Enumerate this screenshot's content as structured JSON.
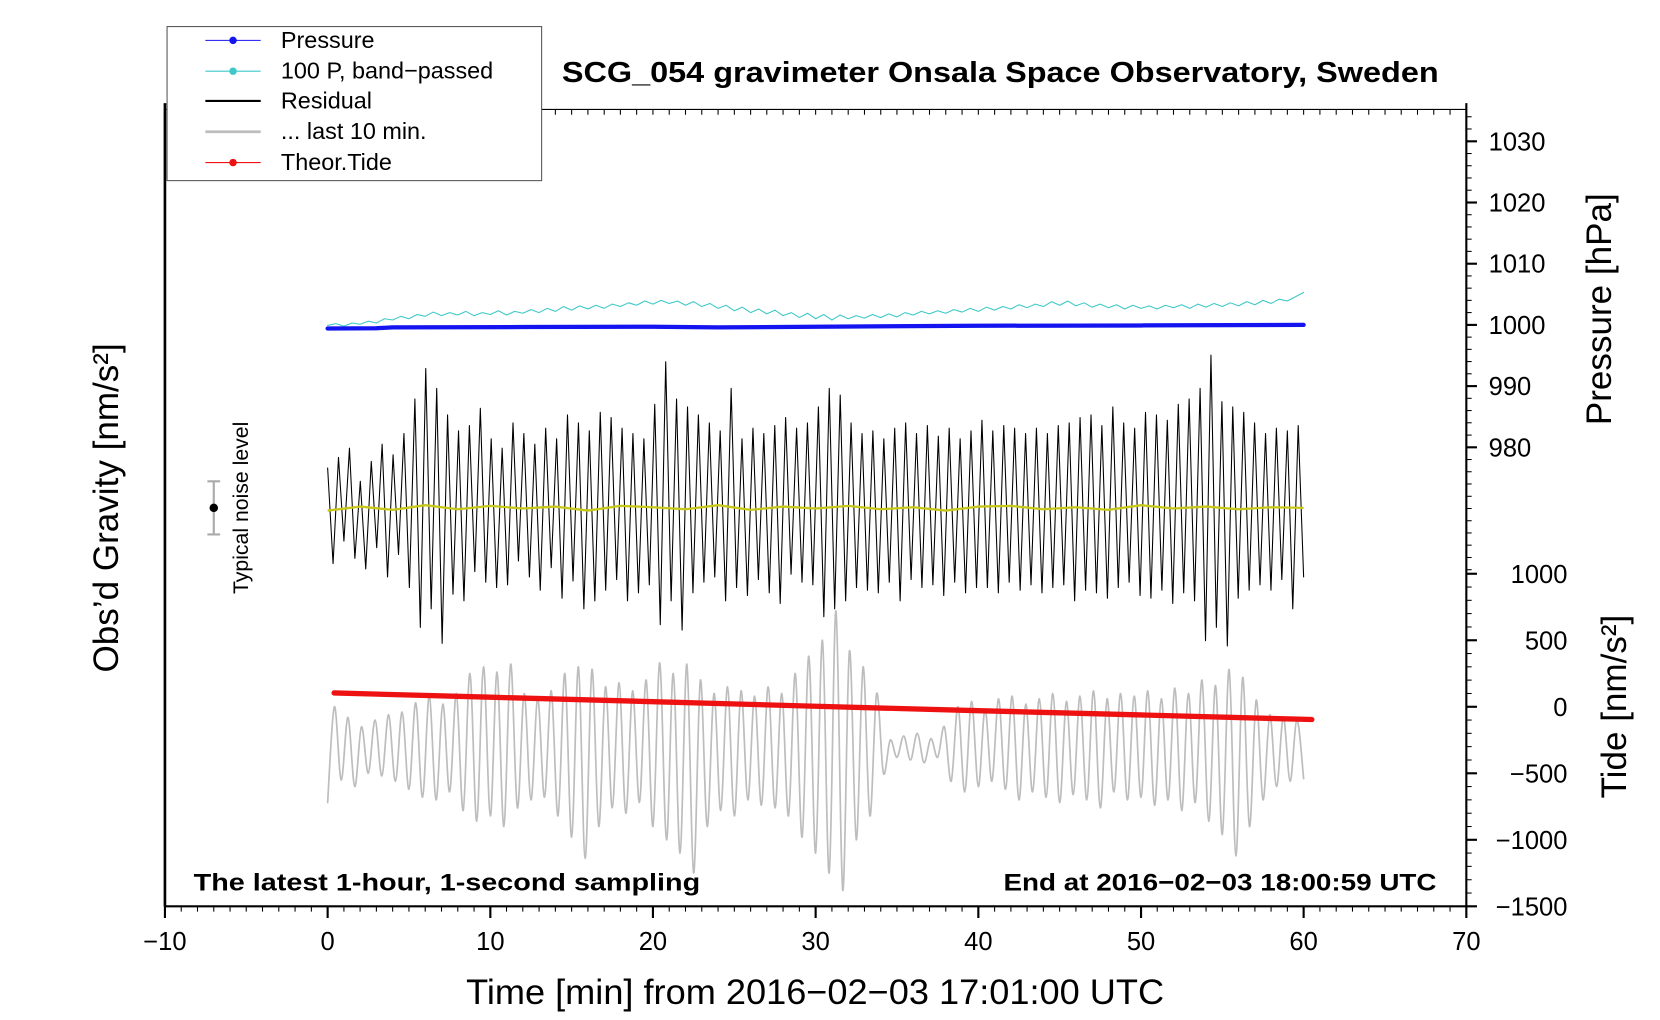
{
  "chart_data": {
    "type": "line",
    "title": "SCG_054 gravimeter Onsala Space Observatory, Sweden",
    "xlabel": "Time [min] from 2016−02−03 17:01:00 UTC",
    "annotation_left": "The latest 1-hour, 1-second sampling",
    "annotation_right": "End at 2016−02−03 18:00:59 UTC",
    "noise_label": "Typical noise level",
    "legend_position": "top-left",
    "xlim": [
      -10,
      70
    ],
    "x_ticks": [
      -10,
      0,
      10,
      20,
      30,
      40,
      50,
      60,
      70
    ],
    "x_tick_labels": [
      "−10",
      "0",
      "10",
      "20",
      "30",
      "40",
      "50",
      "60",
      "70"
    ],
    "y_axes": [
      {
        "label": "Obs’d Gravity [nm/s²]",
        "ylim": [
          -3000,
          3000
        ]
      },
      {
        "label": "Pressure [hPa]",
        "ylim": [
          905,
          1035.2
        ],
        "ticks": [
          980,
          990,
          1000,
          1010,
          1020,
          1030
        ],
        "tick_labels": [
          "980",
          "990",
          "1000",
          "1010",
          "1020",
          "1030"
        ]
      },
      {
        "label": "Tide [nm/s²]",
        "ylim": [
          -1500,
          4490
        ],
        "ticks": [
          1000,
          500,
          0,
          -500,
          -1000,
          -1500
        ],
        "tick_labels": [
          "1000",
          "500",
          "0",
          "−500",
          "−1000",
          "−1500"
        ]
      }
    ],
    "series": [
      {
        "name": "Pressure",
        "color": "#1414f0",
        "y_axis": 1,
        "x": [
          0,
          3,
          4,
          12,
          20,
          24,
          30,
          40,
          50,
          60
        ],
        "values": [
          999.4,
          999.45,
          999.6,
          999.65,
          999.7,
          999.6,
          999.7,
          999.85,
          999.9,
          1000.0
        ]
      },
      {
        "name": "100 P, band−passed",
        "color": "#3ec8c8",
        "y_axis": 1,
        "x_start": 0,
        "x_end": 60,
        "values": [
          999.9,
          1000.2,
          999.8,
          1000.3,
          1000.1,
          1000.6,
          1000.3,
          1001.0,
          1000.8,
          1001.4,
          1001.0,
          1001.7,
          1001.4,
          1002.1,
          1001.5,
          1002.0,
          1001.6,
          1002.2,
          1001.5,
          1002.0,
          1001.7,
          1002.3,
          1001.6,
          1002.2,
          1001.9,
          1002.5,
          1002.0,
          1002.7,
          1002.2,
          1003.0,
          1002.4,
          1003.1,
          1002.6,
          1003.2,
          1002.7,
          1003.4,
          1003.0,
          1003.6,
          1003.2,
          1003.9,
          1003.4,
          1004.0,
          1003.5,
          1003.9,
          1003.2,
          1003.8,
          1003.0,
          1003.5,
          1002.7,
          1003.2,
          1002.3,
          1002.9,
          1002.0,
          1002.6,
          1001.8,
          1002.4,
          1001.5,
          1002.0,
          1001.2,
          1001.9,
          1001.0,
          1001.7,
          1000.8,
          1001.6,
          1001.0,
          1001.5,
          1001.1,
          1001.7,
          1001.2,
          1001.8,
          1001.3,
          1002.0,
          1001.6,
          1002.2,
          1001.8,
          1002.3,
          1001.9,
          1002.5,
          1002.1,
          1002.7,
          1002.2,
          1002.9,
          1002.4,
          1003.0,
          1002.6,
          1003.3,
          1002.8,
          1003.4,
          1003.0,
          1003.8,
          1003.2,
          1003.9,
          1003.1,
          1003.6,
          1002.9,
          1003.4,
          1002.8,
          1003.3,
          1002.6,
          1003.2,
          1002.7,
          1003.1,
          1002.6,
          1003.2,
          1002.8,
          1003.3,
          1002.7,
          1003.4,
          1002.9,
          1003.5,
          1003.0,
          1003.6,
          1003.1,
          1003.8,
          1003.3,
          1004.0,
          1003.5,
          1004.2,
          1003.9,
          1004.6,
          1005.3
        ]
      },
      {
        "name": "Residual",
        "color": "#000000",
        "y_axis": 0,
        "x_start": 0,
        "x_end": 60,
        "values": [
          300,
          -420,
          380,
          -250,
          450,
          -380,
          200,
          -460,
          350,
          -300,
          480,
          -520,
          400,
          -350,
          560,
          -600,
          820,
          -900,
          1050,
          -760,
          900,
          -1020,
          700,
          -650,
          580,
          -700,
          620,
          -480,
          750,
          -560,
          520,
          -600,
          450,
          -580,
          640,
          -400,
          560,
          -520,
          480,
          -620,
          600,
          -450,
          520,
          -680,
          700,
          -550,
          640,
          -760,
          580,
          -700,
          720,
          -620,
          680,
          -540,
          600,
          -700,
          560,
          -640,
          520,
          -580,
          780,
          -880,
          1100,
          -700,
          820,
          -920,
          760,
          -640,
          700,
          -560,
          640,
          -520,
          580,
          -700,
          900,
          -600,
          520,
          -660,
          600,
          -540,
          560,
          -640,
          620,
          -720,
          680,
          -500,
          600,
          -560,
          640,
          -580,
          760,
          -820,
          900,
          -760,
          850,
          -700,
          640,
          -600,
          560,
          -620,
          580,
          -640,
          520,
          -560,
          600,
          -700,
          640,
          -540,
          560,
          -600,
          620,
          -580,
          540,
          -660,
          600,
          -560,
          520,
          -640,
          580,
          -600,
          660,
          -600,
          580,
          -640,
          620,
          -560,
          600,
          -620,
          560,
          -580,
          600,
          -640,
          560,
          -600,
          620,
          -580,
          640,
          -700,
          680,
          -620,
          700,
          -640,
          620,
          -680,
          760,
          -600,
          640,
          -560,
          600,
          -660,
          720,
          -680,
          700,
          -620,
          660,
          -720,
          780,
          -640,
          820,
          -700,
          900,
          -1000,
          1150,
          -900,
          800,
          -1040,
          760,
          -680,
          720,
          -620,
          640,
          -580,
          560,
          -620,
          600,
          -540,
          580,
          -760,
          620,
          -520
        ]
      },
      {
        "name": "... last 10 min.",
        "color": "#bdbdbd",
        "y_axis": 2,
        "x_start": 0,
        "x_end": 60,
        "values": [
          -720,
          0,
          -550,
          -80,
          -600,
          -150,
          -500,
          -100,
          -520,
          -60,
          -560,
          -40,
          -620,
          30,
          -680,
          80,
          -700,
          20,
          -640,
          100,
          -780,
          250,
          -860,
          300,
          -820,
          260,
          -900,
          320,
          -760,
          100,
          -700,
          60,
          -680,
          120,
          -820,
          250,
          -980,
          300,
          -1140,
          280,
          -900,
          150,
          -760,
          180,
          -800,
          120,
          -720,
          200,
          -900,
          330,
          -1000,
          250,
          -1100,
          320,
          -1250,
          200,
          -900,
          100,
          -780,
          150,
          -820,
          120,
          -700,
          80,
          -740,
          150,
          -760,
          100,
          -820,
          250,
          -980,
          380,
          -1100,
          500,
          -1250,
          720,
          -1380,
          420,
          -1000,
          300,
          -820,
          100,
          -500,
          -250,
          -380,
          -220,
          -400,
          -200,
          -420,
          -240,
          -380,
          -150,
          -560,
          0,
          -640,
          40,
          -600,
          -20,
          -560,
          60,
          -620,
          80,
          -700,
          20,
          -640,
          60,
          -680,
          100,
          -720,
          40,
          -660,
          80,
          -700,
          120,
          -760,
          60,
          -640,
          100,
          -700,
          80,
          -680,
          120,
          -740,
          60,
          -700,
          140,
          -780,
          100,
          -720,
          200,
          -860,
          160,
          -960,
          280,
          -1120,
          220,
          -900,
          50,
          -700,
          -60,
          -600,
          -80,
          -560,
          -100,
          -540
        ]
      },
      {
        "name": "Theor.Tide",
        "color": "#ee1111",
        "y_axis": 2,
        "x": [
          0.4,
          10,
          20,
          30,
          40,
          50,
          60.5
        ],
        "values": [
          104,
          72,
          38,
          4,
          -30,
          -62,
          -96
        ]
      }
    ],
    "smoothed_residual": {
      "color": "#c8c81a",
      "y_axis": 0,
      "x_start": 0,
      "x_end": 60,
      "values": [
        -20,
        10,
        -15,
        20,
        -10,
        15,
        -5,
        10,
        -20,
        15,
        5,
        -10,
        20,
        -15,
        10,
        -5,
        15,
        -10,
        5,
        -20,
        10,
        15,
        -10,
        5,
        -15,
        20,
        -5,
        10,
        -10,
        5,
        0
      ]
    },
    "noise_level": {
      "x": -7,
      "center": 0,
      "half_range": 200,
      "bar_color": "#aaaaaa",
      "dot_color": "#000000"
    }
  }
}
